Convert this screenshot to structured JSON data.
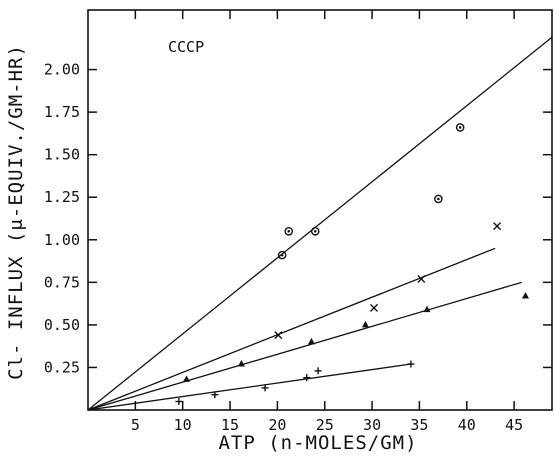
{
  "chart_data": {
    "type": "scatter",
    "title": "",
    "annotation": "CCCP",
    "xlabel": "ATP (n-MOLES/GM)",
    "ylabel": "Cl- INFLUX (μ-EQUIV./GM-HR)",
    "xlim": [
      0,
      49
    ],
    "ylim": [
      0,
      2.35
    ],
    "xticks": [
      0,
      5,
      10,
      15,
      20,
      25,
      30,
      35,
      40,
      45
    ],
    "xtick_labels": [
      "5",
      "10",
      "15",
      "20",
      "25",
      "30",
      "35",
      "40",
      "45"
    ],
    "yticks": [
      0,
      0.25,
      0.5,
      0.75,
      1.0,
      1.25,
      1.5,
      1.75,
      2.0
    ],
    "ytick_labels": [
      "0.25",
      "0.50",
      "0.75",
      "1.00",
      "1.25",
      "1.50",
      "1.75",
      "2.00"
    ],
    "grid": false,
    "legend": "none",
    "series": [
      {
        "marker": "circle-dot",
        "points": [
          [
            20.5,
            0.91
          ],
          [
            21.2,
            1.05
          ],
          [
            24.0,
            1.05
          ],
          [
            37.0,
            1.24
          ],
          [
            39.3,
            1.66
          ]
        ],
        "fit": [
          [
            0,
            0
          ],
          [
            49,
            2.19
          ]
        ]
      },
      {
        "marker": "x",
        "points": [
          [
            20.1,
            0.44
          ],
          [
            30.2,
            0.6
          ],
          [
            35.2,
            0.77
          ],
          [
            43.2,
            1.08
          ]
        ],
        "fit": [
          [
            0,
            0
          ],
          [
            43.0,
            0.95
          ]
        ]
      },
      {
        "marker": "triangle",
        "points": [
          [
            10.4,
            0.18
          ],
          [
            16.2,
            0.27
          ],
          [
            23.6,
            0.4
          ],
          [
            29.3,
            0.5
          ],
          [
            35.8,
            0.59
          ],
          [
            46.2,
            0.67
          ]
        ],
        "fit": [
          [
            0,
            0
          ],
          [
            45.8,
            0.75
          ]
        ]
      },
      {
        "marker": "plus",
        "points": [
          [
            9.6,
            0.05
          ],
          [
            13.4,
            0.09
          ],
          [
            18.7,
            0.13
          ],
          [
            23.1,
            0.19
          ],
          [
            24.3,
            0.23
          ],
          [
            34.1,
            0.27
          ]
        ],
        "fit": [
          [
            0,
            0
          ],
          [
            34.1,
            0.27
          ]
        ]
      }
    ]
  }
}
